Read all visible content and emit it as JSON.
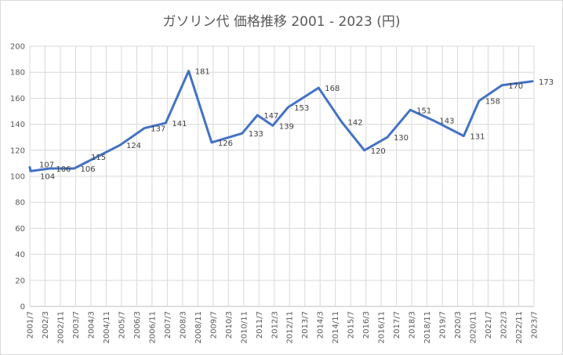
{
  "chart_data": {
    "type": "line",
    "title": "ガソリン代 価格推移 2001 - 2023 (円)",
    "xlabel": "",
    "ylabel": "",
    "ylim": [
      0,
      200
    ],
    "yticks": [
      0,
      20,
      40,
      60,
      80,
      100,
      120,
      140,
      160,
      180,
      200
    ],
    "grid": true,
    "legend": "none",
    "line_color": "#4472c4",
    "categories": [
      "2001/7",
      "2002/3",
      "2002/11",
      "2003/7",
      "2004/3",
      "2004/11",
      "2005/7",
      "2006/3",
      "2006/11",
      "2007/7",
      "2008/3",
      "2008/11",
      "2009/7",
      "2010/3",
      "2010/11",
      "2011/7",
      "2012/3",
      "2012/11",
      "2013/7",
      "2014/3",
      "2014/11",
      "2015/7",
      "2016/3",
      "2016/11",
      "2017/7",
      "2018/3",
      "2018/11",
      "2019/7",
      "2020/3",
      "2020/11",
      "2021/7",
      "2022/3",
      "2022/11",
      "2023/7"
    ],
    "series": [
      {
        "points": [
          {
            "x": 0,
            "y": 107,
            "label": "107"
          },
          {
            "x": 0.05,
            "y": 104,
            "label": "104"
          },
          {
            "x": 1.3,
            "y": 106,
            "label": "106"
          },
          {
            "x": 2.9,
            "y": 106,
            "label": "106"
          },
          {
            "x": 5.9,
            "y": 124,
            "label": "124"
          },
          {
            "x": 7.5,
            "y": 137,
            "label": "137"
          },
          {
            "x": 8.9,
            "y": 141,
            "label": "141"
          },
          {
            "x": 10.4,
            "y": 181,
            "label": "181"
          },
          {
            "x": 11.9,
            "y": 126,
            "label": "126"
          },
          {
            "x": 13.9,
            "y": 133,
            "label": "133"
          },
          {
            "x": 14.9,
            "y": 147,
            "label": "147"
          },
          {
            "x": 15.9,
            "y": 139,
            "label": "139"
          },
          {
            "x": 16.9,
            "y": 153,
            "label": "153"
          },
          {
            "x": 18.9,
            "y": 168,
            "label": "168"
          },
          {
            "x": 20.4,
            "y": 142,
            "label": "142"
          },
          {
            "x": 21.9,
            "y": 120,
            "label": "120"
          },
          {
            "x": 23.4,
            "y": 130,
            "label": "130"
          },
          {
            "x": 24.9,
            "y": 151,
            "label": "151"
          },
          {
            "x": 26.4,
            "y": 143,
            "label": "143"
          },
          {
            "x": 28.4,
            "y": 131,
            "label": "131"
          },
          {
            "x": 29.4,
            "y": 158,
            "label": "158"
          },
          {
            "x": 30.9,
            "y": 170,
            "label": "170"
          },
          {
            "x": 32.9,
            "y": 173,
            "label": "173"
          }
        ],
        "extra_labels": [
          {
            "x": 3.9,
            "y": 115,
            "label": "115"
          }
        ]
      }
    ]
  }
}
